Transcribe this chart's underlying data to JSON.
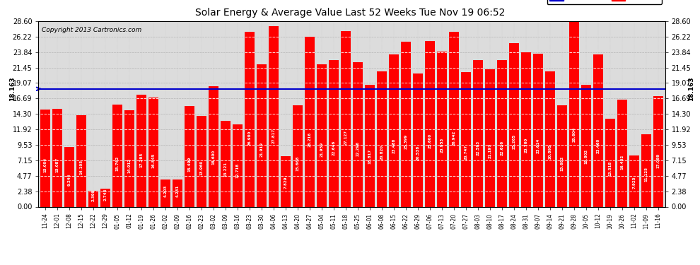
{
  "title": "Solar Energy & Average Value Last 52 Weeks Tue Nov 19 06:52",
  "copyright": "Copyright 2013 Cartronics.com",
  "bar_color": "#FF0000",
  "average_line_color": "#0000CD",
  "average_value": 18.163,
  "background_color": "#FFFFFF",
  "plot_bg_color": "#DCDCDC",
  "grid_color": "#AAAAAA",
  "ylim_max": 28.6,
  "yticks": [
    0.0,
    2.38,
    4.77,
    7.15,
    9.53,
    11.92,
    14.3,
    16.69,
    19.07,
    21.45,
    23.84,
    26.22,
    28.6
  ],
  "legend_avg_color": "#0000CD",
  "legend_daily_color": "#FF0000",
  "categories": [
    "11-24",
    "12-01",
    "12-08",
    "12-15",
    "12-22",
    "12-29",
    "01-05",
    "01-12",
    "01-19",
    "01-26",
    "02-02",
    "02-09",
    "02-16",
    "02-23",
    "03-02",
    "03-09",
    "03-16",
    "03-23",
    "03-30",
    "04-06",
    "04-13",
    "04-20",
    "04-27",
    "05-04",
    "05-11",
    "05-18",
    "05-25",
    "06-01",
    "06-08",
    "06-15",
    "06-22",
    "06-29",
    "07-06",
    "07-13",
    "07-20",
    "07-27",
    "08-03",
    "08-10",
    "08-17",
    "08-24",
    "08-31",
    "09-07",
    "09-14",
    "09-21",
    "09-28",
    "10-05",
    "10-12",
    "10-19",
    "10-26",
    "11-02",
    "11-09",
    "11-16"
  ],
  "values": [
    15.004,
    15.087,
    9.244,
    14.105,
    2.398,
    2.745,
    15.762,
    14.912,
    17.295,
    16.845,
    4.203,
    4.231,
    15.499,
    13.96,
    18.6,
    13.221,
    12.718,
    26.98,
    21.919,
    27.817,
    7.829,
    15.668,
    26.216,
    21.959,
    22.646,
    27.127,
    22.296,
    18.817,
    20.82,
    23.488,
    25.399,
    20.538,
    25.6,
    23.953,
    26.942,
    20.747,
    22.593,
    21.197,
    22.626,
    25.265,
    23.76,
    23.614,
    20.895,
    15.682,
    28.604,
    18.802,
    23.46,
    13.518,
    16.452,
    7.925,
    11.125,
    17.089
  ]
}
